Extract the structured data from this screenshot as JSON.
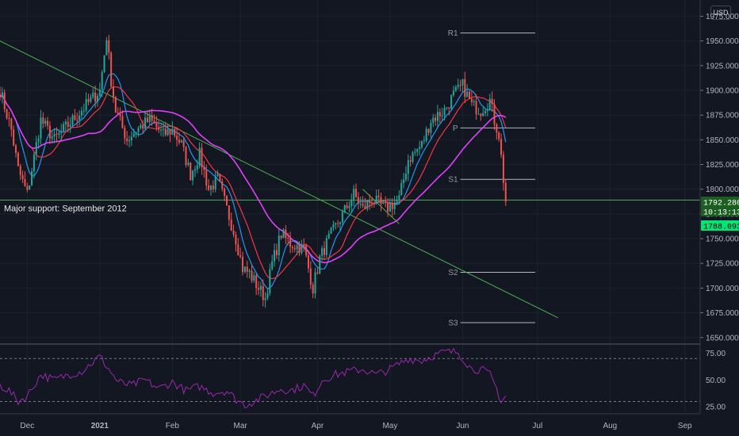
{
  "currency": "USD",
  "chart_data": [
    {
      "type": "candlestick",
      "title": "",
      "ylim": [
        1645,
        1985
      ],
      "y_ticks": [
        "1650.000",
        "1675.000",
        "1700.000",
        "1725.000",
        "1750.000",
        "1775.000",
        "1800.000",
        "1825.000",
        "1850.000",
        "1875.000",
        "1900.000",
        "1925.000",
        "1950.000",
        "1975.000"
      ],
      "x_ticks": [
        {
          "label": "Dec",
          "bar": 12
        },
        {
          "label": "2021",
          "bar": 44
        },
        {
          "label": "Feb",
          "bar": 76
        },
        {
          "label": "Mar",
          "bar": 106
        },
        {
          "label": "Apr",
          "bar": 140
        },
        {
          "label": "May",
          "bar": 172
        },
        {
          "label": "Jun",
          "bar": 204
        },
        {
          "label": "Jul",
          "bar": 237
        },
        {
          "label": "Aug",
          "bar": 269
        },
        {
          "label": "Sep",
          "bar": 302
        }
      ],
      "anchors": [
        [
          0,
          1900
        ],
        [
          5,
          1860
        ],
        [
          8,
          1820
        ],
        [
          12,
          1795
        ],
        [
          18,
          1870
        ],
        [
          24,
          1850
        ],
        [
          30,
          1865
        ],
        [
          36,
          1880
        ],
        [
          40,
          1890
        ],
        [
          44,
          1900
        ],
        [
          47,
          1955
        ],
        [
          49,
          1910
        ],
        [
          51,
          1880
        ],
        [
          56,
          1850
        ],
        [
          60,
          1860
        ],
        [
          66,
          1870
        ],
        [
          72,
          1855
        ],
        [
          76,
          1860
        ],
        [
          80,
          1845
        ],
        [
          84,
          1815
        ],
        [
          88,
          1835
        ],
        [
          92,
          1800
        ],
        [
          96,
          1810
        ],
        [
          100,
          1780
        ],
        [
          104,
          1750
        ],
        [
          107,
          1720
        ],
        [
          110,
          1715
        ],
        [
          114,
          1700
        ],
        [
          117,
          1690
        ],
        [
          120,
          1725
        ],
        [
          124,
          1755
        ],
        [
          128,
          1745
        ],
        [
          134,
          1740
        ],
        [
          138,
          1700
        ],
        [
          141,
          1730
        ],
        [
          145,
          1750
        ],
        [
          150,
          1770
        ],
        [
          156,
          1795
        ],
        [
          160,
          1780
        ],
        [
          164,
          1790
        ],
        [
          170,
          1780
        ],
        [
          176,
          1790
        ],
        [
          180,
          1830
        ],
        [
          186,
          1845
        ],
        [
          190,
          1870
        ],
        [
          196,
          1880
        ],
        [
          200,
          1895
        ],
        [
          204,
          1905
        ],
        [
          208,
          1885
        ],
        [
          212,
          1880
        ],
        [
          216,
          1890
        ],
        [
          218,
          1870
        ],
        [
          220,
          1855
        ],
        [
          222,
          1810
        ],
        [
          223,
          1788
        ]
      ],
      "last_bar": 223,
      "annotation": "Major support: September 2012",
      "support_level": 1789,
      "pivots": [
        {
          "label": "R1",
          "value": 1958
        },
        {
          "label": "P",
          "value": 1862
        },
        {
          "label": "S1",
          "value": 1810
        },
        {
          "label": "S2",
          "value": 1716
        },
        {
          "label": "S3",
          "value": 1665
        }
      ],
      "trendlines": [
        {
          "from": [
            0,
            1950
          ],
          "to": [
            246,
            1670
          ]
        },
        {
          "from": [
            160,
            1800
          ],
          "to": [
            176,
            1765
          ]
        }
      ],
      "moving_averages": [
        {
          "name": "MA fast",
          "color": "#2196f3"
        },
        {
          "name": "MA mid",
          "color": "#f23645"
        },
        {
          "name": "MA slow",
          "color": "#e040fb"
        }
      ],
      "price_tags": [
        {
          "value": "1792.280",
          "color": "#1b5e20",
          "text_color": "#ffffff"
        },
        {
          "value": "10:13:13",
          "color": "#1b5e20",
          "text_color": "#ffffff"
        },
        {
          "value": "1788.093",
          "color": "#00e676",
          "text_color": "#000000"
        }
      ],
      "rsi": {
        "ylim": [
          20,
          82
        ],
        "y_ticks": [
          "25.00",
          "50.00",
          "75.00"
        ],
        "upper": 70,
        "lower": 30,
        "color": "#9c27b0",
        "anchors": [
          [
            0,
            45
          ],
          [
            4,
            40
          ],
          [
            8,
            30
          ],
          [
            12,
            35
          ],
          [
            18,
            55
          ],
          [
            24,
            50
          ],
          [
            30,
            55
          ],
          [
            36,
            58
          ],
          [
            44,
            72
          ],
          [
            48,
            60
          ],
          [
            52,
            48
          ],
          [
            58,
            45
          ],
          [
            64,
            50
          ],
          [
            70,
            42
          ],
          [
            76,
            48
          ],
          [
            82,
            40
          ],
          [
            88,
            44
          ],
          [
            94,
            38
          ],
          [
            100,
            40
          ],
          [
            104,
            32
          ],
          [
            108,
            27
          ],
          [
            112,
            30
          ],
          [
            118,
            36
          ],
          [
            124,
            42
          ],
          [
            128,
            40
          ],
          [
            134,
            45
          ],
          [
            138,
            35
          ],
          [
            142,
            50
          ],
          [
            148,
            55
          ],
          [
            154,
            58
          ],
          [
            160,
            60
          ],
          [
            166,
            55
          ],
          [
            172,
            60
          ],
          [
            176,
            65
          ],
          [
            180,
            70
          ],
          [
            186,
            68
          ],
          [
            190,
            72
          ],
          [
            196,
            76
          ],
          [
            202,
            76
          ],
          [
            205,
            68
          ],
          [
            208,
            60
          ],
          [
            212,
            60
          ],
          [
            216,
            55
          ],
          [
            219,
            42
          ],
          [
            221,
            30
          ],
          [
            223,
            35
          ]
        ]
      }
    }
  ]
}
